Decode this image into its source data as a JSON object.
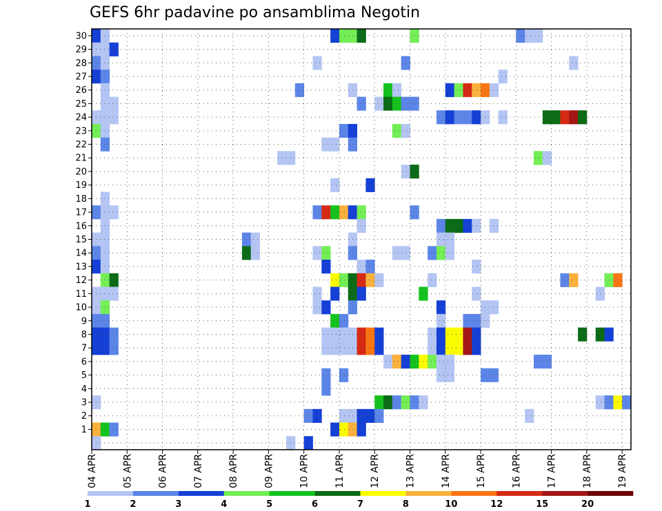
{
  "title": "GEFS 6hr padavine po ansamblima Negotin",
  "chart_data": {
    "type": "heatmap",
    "title": "GEFS 6hr padavine po ansamblima Negotin",
    "xlabel": "",
    "ylabel": "",
    "y_ticks": [
      1,
      2,
      3,
      4,
      5,
      6,
      7,
      8,
      9,
      10,
      11,
      12,
      13,
      14,
      15,
      16,
      17,
      18,
      19,
      20,
      21,
      22,
      23,
      24,
      25,
      26,
      27,
      28,
      29,
      30
    ],
    "x_ticks": [
      "04 APR",
      "05 APR",
      "06 APR",
      "07 APR",
      "08 APR",
      "09 APR",
      "10 APR",
      "11 APR",
      "12 APR",
      "13 APR",
      "14 APR",
      "15 APR",
      "16 APR",
      "17 APR",
      "18 APR",
      "19 APR"
    ],
    "x_steps_per_day": 4,
    "n_steps": 61,
    "legend": {
      "thresholds": [
        "1",
        "2",
        "3",
        "4",
        "5",
        "6",
        "7",
        "8",
        "10",
        "12",
        "15",
        "20"
      ],
      "colors": [
        "#b4c5f3",
        "#5c85e8",
        "#1540d6",
        "#73ee55",
        "#14c21e",
        "#0b6b16",
        "#fbfb00",
        "#fab13c",
        "#f97612",
        "#d62a14",
        "#a51616",
        "#6b0606"
      ]
    },
    "cells_note": "each cell = [member, step_index_from_04APR00, color_index]",
    "cells": [
      [
        30,
        0,
        2
      ],
      [
        30,
        1,
        0
      ],
      [
        30,
        27,
        2
      ],
      [
        30,
        28,
        3
      ],
      [
        30,
        29,
        3
      ],
      [
        30,
        30,
        5
      ],
      [
        30,
        36,
        3
      ],
      [
        30,
        48,
        1
      ],
      [
        30,
        49,
        0
      ],
      [
        30,
        50,
        0
      ],
      [
        29,
        0,
        0
      ],
      [
        29,
        1,
        0
      ],
      [
        29,
        2,
        2
      ],
      [
        28,
        0,
        1
      ],
      [
        28,
        1,
        0
      ],
      [
        28,
        25,
        0
      ],
      [
        28,
        35,
        1
      ],
      [
        28,
        54,
        0
      ],
      [
        27,
        0,
        2
      ],
      [
        27,
        1,
        1
      ],
      [
        27,
        46,
        0
      ],
      [
        26,
        1,
        0
      ],
      [
        26,
        23,
        1
      ],
      [
        26,
        29,
        0
      ],
      [
        26,
        33,
        4
      ],
      [
        26,
        34,
        0
      ],
      [
        26,
        40,
        2
      ],
      [
        26,
        41,
        3
      ],
      [
        26,
        42,
        9
      ],
      [
        26,
        43,
        7
      ],
      [
        26,
        44,
        8
      ],
      [
        26,
        45,
        0
      ],
      [
        25,
        1,
        0
      ],
      [
        25,
        2,
        0
      ],
      [
        25,
        30,
        1
      ],
      [
        25,
        32,
        0
      ],
      [
        25,
        33,
        5
      ],
      [
        25,
        34,
        4
      ],
      [
        25,
        35,
        1
      ],
      [
        25,
        36,
        1
      ],
      [
        24,
        0,
        0
      ],
      [
        24,
        1,
        0
      ],
      [
        24,
        2,
        0
      ],
      [
        24,
        39,
        1
      ],
      [
        24,
        40,
        2
      ],
      [
        24,
        41,
        1
      ],
      [
        24,
        42,
        1
      ],
      [
        24,
        43,
        2
      ],
      [
        24,
        44,
        0
      ],
      [
        24,
        46,
        0
      ],
      [
        24,
        51,
        5
      ],
      [
        24,
        52,
        5
      ],
      [
        24,
        53,
        9
      ],
      [
        24,
        54,
        10
      ],
      [
        24,
        55,
        5
      ],
      [
        23,
        0,
        3
      ],
      [
        23,
        1,
        0
      ],
      [
        23,
        28,
        1
      ],
      [
        23,
        29,
        2
      ],
      [
        23,
        34,
        3
      ],
      [
        23,
        35,
        0
      ],
      [
        22,
        1,
        1
      ],
      [
        22,
        26,
        0
      ],
      [
        22,
        27,
        0
      ],
      [
        22,
        29,
        1
      ],
      [
        21,
        21,
        0
      ],
      [
        21,
        22,
        0
      ],
      [
        21,
        50,
        3
      ],
      [
        21,
        51,
        0
      ],
      [
        20,
        35,
        0
      ],
      [
        20,
        36,
        5
      ],
      [
        19,
        27,
        0
      ],
      [
        19,
        31,
        2
      ],
      [
        18,
        1,
        0
      ],
      [
        17,
        0,
        1
      ],
      [
        17,
        1,
        0
      ],
      [
        17,
        2,
        0
      ],
      [
        17,
        25,
        1
      ],
      [
        17,
        26,
        9
      ],
      [
        17,
        27,
        4
      ],
      [
        17,
        28,
        7
      ],
      [
        17,
        29,
        2
      ],
      [
        17,
        30,
        3
      ],
      [
        17,
        36,
        1
      ],
      [
        16,
        1,
        0
      ],
      [
        16,
        30,
        0
      ],
      [
        16,
        39,
        1
      ],
      [
        16,
        40,
        5
      ],
      [
        16,
        41,
        5
      ],
      [
        16,
        42,
        2
      ],
      [
        16,
        43,
        0
      ],
      [
        16,
        45,
        0
      ],
      [
        15,
        0,
        0
      ],
      [
        15,
        1,
        0
      ],
      [
        15,
        17,
        1
      ],
      [
        15,
        18,
        0
      ],
      [
        15,
        29,
        0
      ],
      [
        15,
        39,
        0
      ],
      [
        15,
        40,
        0
      ],
      [
        14,
        0,
        1
      ],
      [
        14,
        1,
        0
      ],
      [
        14,
        17,
        5
      ],
      [
        14,
        18,
        0
      ],
      [
        14,
        25,
        0
      ],
      [
        14,
        26,
        3
      ],
      [
        14,
        29,
        1
      ],
      [
        14,
        34,
        0
      ],
      [
        14,
        35,
        0
      ],
      [
        14,
        38,
        1
      ],
      [
        14,
        39,
        3
      ],
      [
        14,
        40,
        0
      ],
      [
        13,
        0,
        2
      ],
      [
        13,
        1,
        0
      ],
      [
        13,
        26,
        2
      ],
      [
        13,
        30,
        0
      ],
      [
        13,
        31,
        1
      ],
      [
        13,
        43,
        0
      ],
      [
        12,
        1,
        3
      ],
      [
        12,
        2,
        5
      ],
      [
        12,
        27,
        6
      ],
      [
        12,
        28,
        3
      ],
      [
        12,
        29,
        5
      ],
      [
        12,
        30,
        9
      ],
      [
        12,
        31,
        7
      ],
      [
        12,
        32,
        0
      ],
      [
        12,
        38,
        0
      ],
      [
        12,
        53,
        1
      ],
      [
        12,
        54,
        7
      ],
      [
        12,
        58,
        3
      ],
      [
        12,
        59,
        8
      ],
      [
        11,
        0,
        0
      ],
      [
        11,
        1,
        0
      ],
      [
        11,
        2,
        0
      ],
      [
        11,
        25,
        0
      ],
      [
        11,
        27,
        2
      ],
      [
        11,
        29,
        5
      ],
      [
        11,
        30,
        2
      ],
      [
        11,
        37,
        4
      ],
      [
        11,
        43,
        0
      ],
      [
        11,
        57,
        0
      ],
      [
        10,
        0,
        0
      ],
      [
        10,
        1,
        3
      ],
      [
        10,
        25,
        0
      ],
      [
        10,
        26,
        2
      ],
      [
        10,
        29,
        1
      ],
      [
        10,
        39,
        2
      ],
      [
        10,
        44,
        0
      ],
      [
        10,
        45,
        0
      ],
      [
        9,
        0,
        1
      ],
      [
        9,
        1,
        1
      ],
      [
        9,
        27,
        4
      ],
      [
        9,
        28,
        1
      ],
      [
        9,
        39,
        0
      ],
      [
        9,
        42,
        1
      ],
      [
        9,
        43,
        1
      ],
      [
        9,
        44,
        0
      ],
      [
        8,
        0,
        2
      ],
      [
        8,
        1,
        2
      ],
      [
        8,
        2,
        1
      ],
      [
        8,
        26,
        0
      ],
      [
        8,
        27,
        0
      ],
      [
        8,
        28,
        0
      ],
      [
        8,
        29,
        0
      ],
      [
        8,
        30,
        9
      ],
      [
        8,
        31,
        8
      ],
      [
        8,
        32,
        2
      ],
      [
        8,
        38,
        0
      ],
      [
        8,
        39,
        2
      ],
      [
        8,
        40,
        6
      ],
      [
        8,
        41,
        6
      ],
      [
        8,
        42,
        10
      ],
      [
        8,
        43,
        2
      ],
      [
        8,
        55,
        5
      ],
      [
        8,
        57,
        5
      ],
      [
        8,
        58,
        2
      ],
      [
        7,
        0,
        2
      ],
      [
        7,
        1,
        2
      ],
      [
        7,
        2,
        1
      ],
      [
        7,
        26,
        0
      ],
      [
        7,
        27,
        0
      ],
      [
        7,
        28,
        0
      ],
      [
        7,
        29,
        0
      ],
      [
        7,
        30,
        9
      ],
      [
        7,
        31,
        8
      ],
      [
        7,
        32,
        2
      ],
      [
        7,
        38,
        0
      ],
      [
        7,
        39,
        2
      ],
      [
        7,
        40,
        6
      ],
      [
        7,
        41,
        6
      ],
      [
        7,
        42,
        10
      ],
      [
        7,
        43,
        2
      ],
      [
        6,
        33,
        0
      ],
      [
        6,
        34,
        7
      ],
      [
        6,
        35,
        2
      ],
      [
        6,
        36,
        4
      ],
      [
        6,
        37,
        6
      ],
      [
        6,
        38,
        3
      ],
      [
        6,
        39,
        0
      ],
      [
        6,
        40,
        0
      ],
      [
        6,
        50,
        1
      ],
      [
        6,
        51,
        1
      ],
      [
        5,
        26,
        1
      ],
      [
        5,
        28,
        1
      ],
      [
        5,
        39,
        0
      ],
      [
        5,
        40,
        0
      ],
      [
        5,
        44,
        1
      ],
      [
        5,
        45,
        1
      ],
      [
        4,
        26,
        1
      ],
      [
        3,
        0,
        0
      ],
      [
        3,
        32,
        4
      ],
      [
        3,
        33,
        5
      ],
      [
        3,
        34,
        1
      ],
      [
        3,
        35,
        3
      ],
      [
        3,
        36,
        1
      ],
      [
        3,
        37,
        0
      ],
      [
        3,
        57,
        0
      ],
      [
        3,
        58,
        1
      ],
      [
        3,
        59,
        6
      ],
      [
        3,
        60,
        1
      ],
      [
        2,
        24,
        1
      ],
      [
        2,
        25,
        2
      ],
      [
        2,
        28,
        0
      ],
      [
        2,
        29,
        0
      ],
      [
        2,
        30,
        2
      ],
      [
        2,
        31,
        2
      ],
      [
        2,
        32,
        1
      ],
      [
        2,
        49,
        0
      ],
      [
        1,
        0,
        7
      ],
      [
        1,
        1,
        4
      ],
      [
        1,
        2,
        1
      ],
      [
        1,
        27,
        2
      ],
      [
        1,
        28,
        6
      ],
      [
        1,
        29,
        7
      ],
      [
        1,
        30,
        2
      ],
      [
        0,
        0,
        0
      ],
      [
        0,
        22,
        0
      ],
      [
        0,
        24,
        2
      ]
    ]
  }
}
